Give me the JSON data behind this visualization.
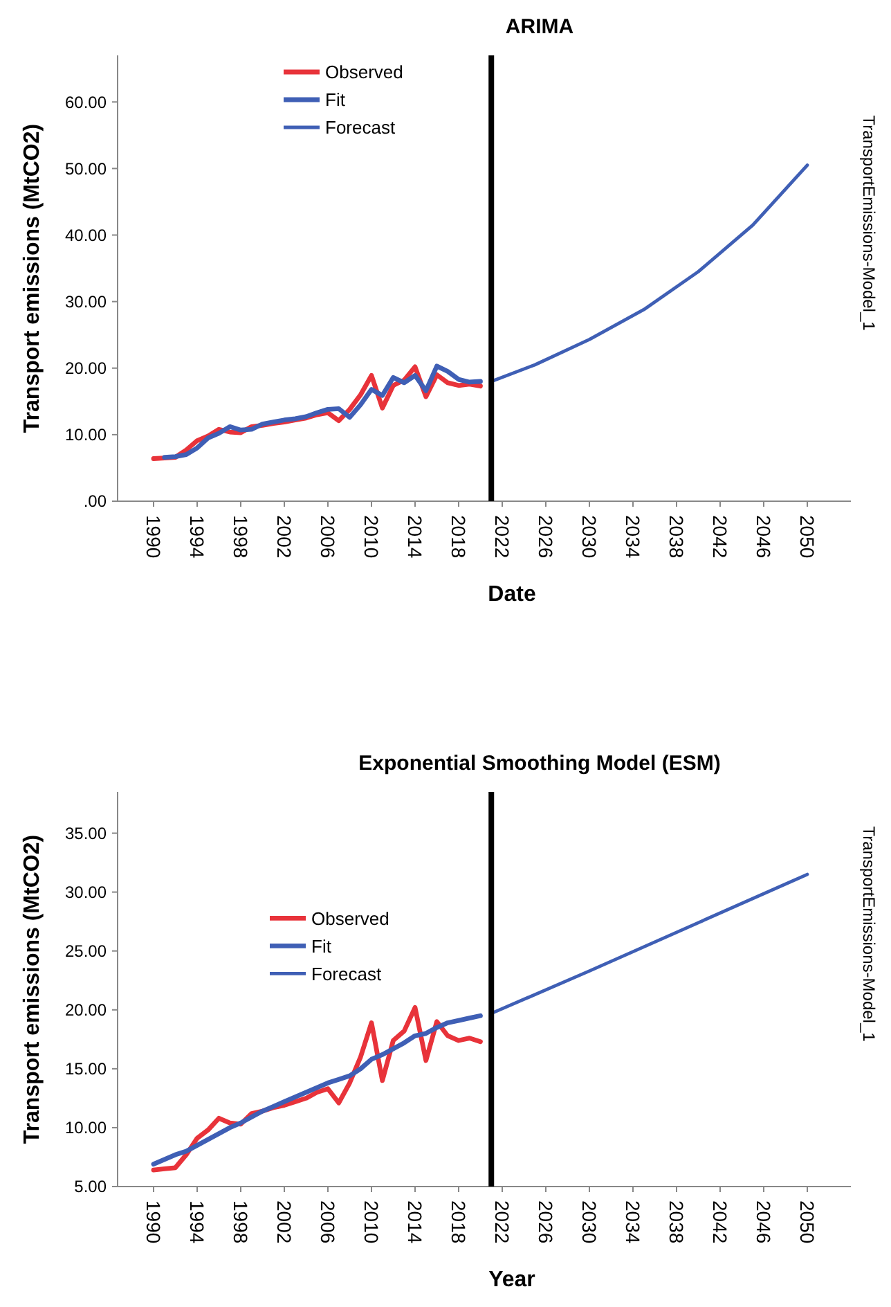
{
  "chart_data": [
    {
      "type": "line",
      "title": "ARIMA",
      "xlabel": "Date",
      "ylabel": "Transport emissions (MtCO2)",
      "annotations": [
        "TransportEmissions-Model_1"
      ],
      "xlim": [
        1986.7,
        2054
      ],
      "xticks": [
        1990,
        1994,
        1998,
        2002,
        2006,
        2010,
        2014,
        2018,
        2022,
        2026,
        2030,
        2034,
        2038,
        2042,
        2046,
        2050
      ],
      "ylim": [
        0,
        67
      ],
      "yticks": [
        {
          "value": 0,
          "label": ".00"
        },
        {
          "value": 10,
          "label": "10.00"
        },
        {
          "value": 20,
          "label": "20.00"
        },
        {
          "value": 30,
          "label": "30.00"
        },
        {
          "value": 40,
          "label": "40.00"
        },
        {
          "value": 50,
          "label": "50.00"
        },
        {
          "value": 60,
          "label": "60.00"
        }
      ],
      "legend": "top left",
      "grid": false,
      "line_style": "solid",
      "ref_lines": [
        {
          "axis": "x",
          "value": 2021,
          "color": "#000000"
        }
      ],
      "series": [
        {
          "name": "Observed",
          "color": "#e8333a",
          "x": [
            1990,
            1991,
            1992,
            1993,
            1994,
            1995,
            1996,
            1997,
            1998,
            1999,
            2000,
            2001,
            2002,
            2003,
            2004,
            2005,
            2006,
            2007,
            2008,
            2009,
            2010,
            2011,
            2012,
            2013,
            2014,
            2015,
            2016,
            2017,
            2018,
            2019,
            2020
          ],
          "values": [
            6.4,
            6.5,
            6.6,
            7.7,
            9.1,
            9.8,
            10.8,
            10.4,
            10.3,
            11.2,
            11.4,
            11.7,
            11.9,
            12.2,
            12.5,
            13.0,
            13.3,
            12.1,
            13.8,
            16.0,
            18.9,
            14.0,
            17.4,
            18.2,
            20.2,
            15.7,
            19.0,
            17.8,
            17.4,
            17.6,
            17.3
          ]
        },
        {
          "name": "Fit",
          "color": "#3f5fb5",
          "x": [
            1991,
            1992,
            1993,
            1994,
            1995,
            1996,
            1997,
            1998,
            1999,
            2000,
            2001,
            2002,
            2003,
            2004,
            2005,
            2006,
            2007,
            2008,
            2009,
            2010,
            2011,
            2012,
            2013,
            2014,
            2015,
            2016,
            2017,
            2018,
            2019,
            2020
          ],
          "values": [
            6.6,
            6.7,
            7.0,
            8.0,
            9.5,
            10.2,
            11.2,
            10.7,
            10.8,
            11.6,
            11.9,
            12.2,
            12.4,
            12.7,
            13.3,
            13.8,
            13.9,
            12.6,
            14.5,
            16.8,
            15.9,
            18.6,
            17.8,
            18.9,
            16.6,
            20.3,
            19.5,
            18.3,
            17.9,
            18.0
          ]
        },
        {
          "name": "Forecast",
          "color": "#3f5fb5",
          "x": [
            2021,
            2025,
            2030,
            2035,
            2040,
            2045,
            2050
          ],
          "values": [
            18.0,
            20.5,
            24.3,
            28.8,
            34.5,
            41.5,
            50.5
          ]
        }
      ]
    },
    {
      "type": "line",
      "title": "Exponential Smoothing Model (ESM)",
      "xlabel": "Year",
      "ylabel": "Transport emissions (MtCO2)",
      "annotations": [
        "TransportEmissions-Model_1"
      ],
      "xlim": [
        1986.7,
        2054
      ],
      "xticks": [
        1990,
        1994,
        1998,
        2002,
        2006,
        2010,
        2014,
        2018,
        2022,
        2026,
        2030,
        2034,
        2038,
        2042,
        2046,
        2050
      ],
      "ylim": [
        5,
        38.5
      ],
      "yticks": [
        {
          "value": 5,
          "label": "5.00"
        },
        {
          "value": 10,
          "label": "10.00"
        },
        {
          "value": 15,
          "label": "15.00"
        },
        {
          "value": 20,
          "label": "20.00"
        },
        {
          "value": 25,
          "label": "25.00"
        },
        {
          "value": 30,
          "label": "30.00"
        },
        {
          "value": 35,
          "label": "35.00"
        }
      ],
      "legend": "left",
      "grid": false,
      "line_style": "solid",
      "ref_lines": [
        {
          "axis": "x",
          "value": 2021,
          "color": "#000000"
        }
      ],
      "series": [
        {
          "name": "Observed",
          "color": "#e8333a",
          "x": [
            1990,
            1991,
            1992,
            1993,
            1994,
            1995,
            1996,
            1997,
            1998,
            1999,
            2000,
            2001,
            2002,
            2003,
            2004,
            2005,
            2006,
            2007,
            2008,
            2009,
            2010,
            2011,
            2012,
            2013,
            2014,
            2015,
            2016,
            2017,
            2018,
            2019,
            2020
          ],
          "values": [
            6.4,
            6.5,
            6.6,
            7.7,
            9.1,
            9.8,
            10.8,
            10.4,
            10.3,
            11.2,
            11.4,
            11.7,
            11.9,
            12.2,
            12.5,
            13.0,
            13.3,
            12.1,
            13.8,
            16.0,
            18.9,
            14.0,
            17.4,
            18.2,
            20.2,
            15.7,
            19.0,
            17.8,
            17.4,
            17.6,
            17.3
          ]
        },
        {
          "name": "Fit",
          "color": "#3f5fb5",
          "x": [
            1990,
            1991,
            1992,
            1993,
            1994,
            1995,
            1996,
            1997,
            1998,
            1999,
            2000,
            2001,
            2002,
            2003,
            2004,
            2005,
            2006,
            2007,
            2008,
            2009,
            2010,
            2011,
            2012,
            2013,
            2014,
            2015,
            2016,
            2017,
            2018,
            2019,
            2020
          ],
          "values": [
            6.9,
            7.3,
            7.7,
            8.0,
            8.5,
            9.0,
            9.5,
            10.0,
            10.4,
            10.9,
            11.4,
            11.8,
            12.2,
            12.6,
            13.0,
            13.4,
            13.8,
            14.1,
            14.4,
            15.0,
            15.8,
            16.2,
            16.7,
            17.2,
            17.8,
            18.0,
            18.5,
            18.9,
            19.1,
            19.3,
            19.5
          ]
        },
        {
          "name": "Forecast",
          "color": "#3f5fb5",
          "x": [
            2021,
            2030,
            2040,
            2050
          ],
          "values": [
            19.7,
            23.3,
            27.4,
            31.5
          ]
        }
      ]
    }
  ]
}
